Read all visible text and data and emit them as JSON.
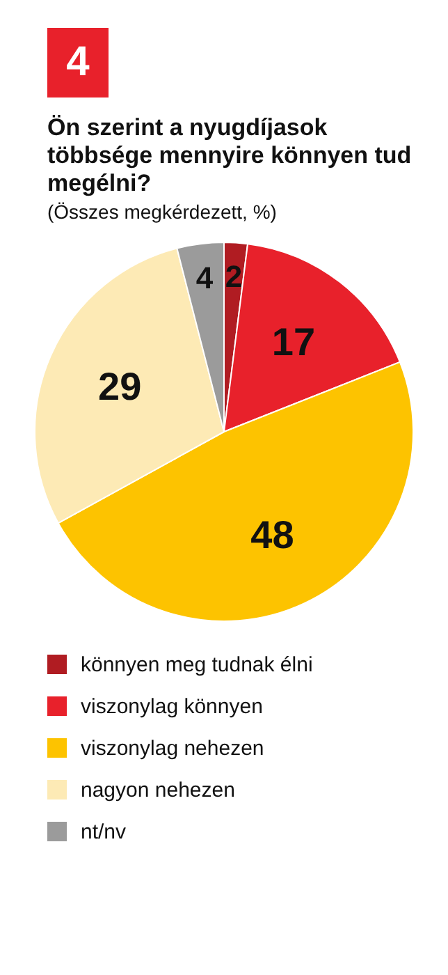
{
  "chart_data": {
    "type": "pie",
    "title": "Ön szerint a nyugdíjasok többsége mennyire könnyen tud megélni?",
    "subtitle": "(Összes megkérdezett, %)",
    "annotations": [
      "4"
    ],
    "categories": [
      "könnyen meg tudnak élni",
      "viszonylag könnyen",
      "viszonylag nehezen",
      "nagyon nehezen",
      "nt/nv"
    ],
    "values": [
      2,
      17,
      48,
      29,
      4
    ],
    "colors": [
      "#b01c22",
      "#e8212b",
      "#fdc300",
      "#fdeab5",
      "#9b9b9b"
    ],
    "data_labels": true,
    "legend": "bottom"
  }
}
